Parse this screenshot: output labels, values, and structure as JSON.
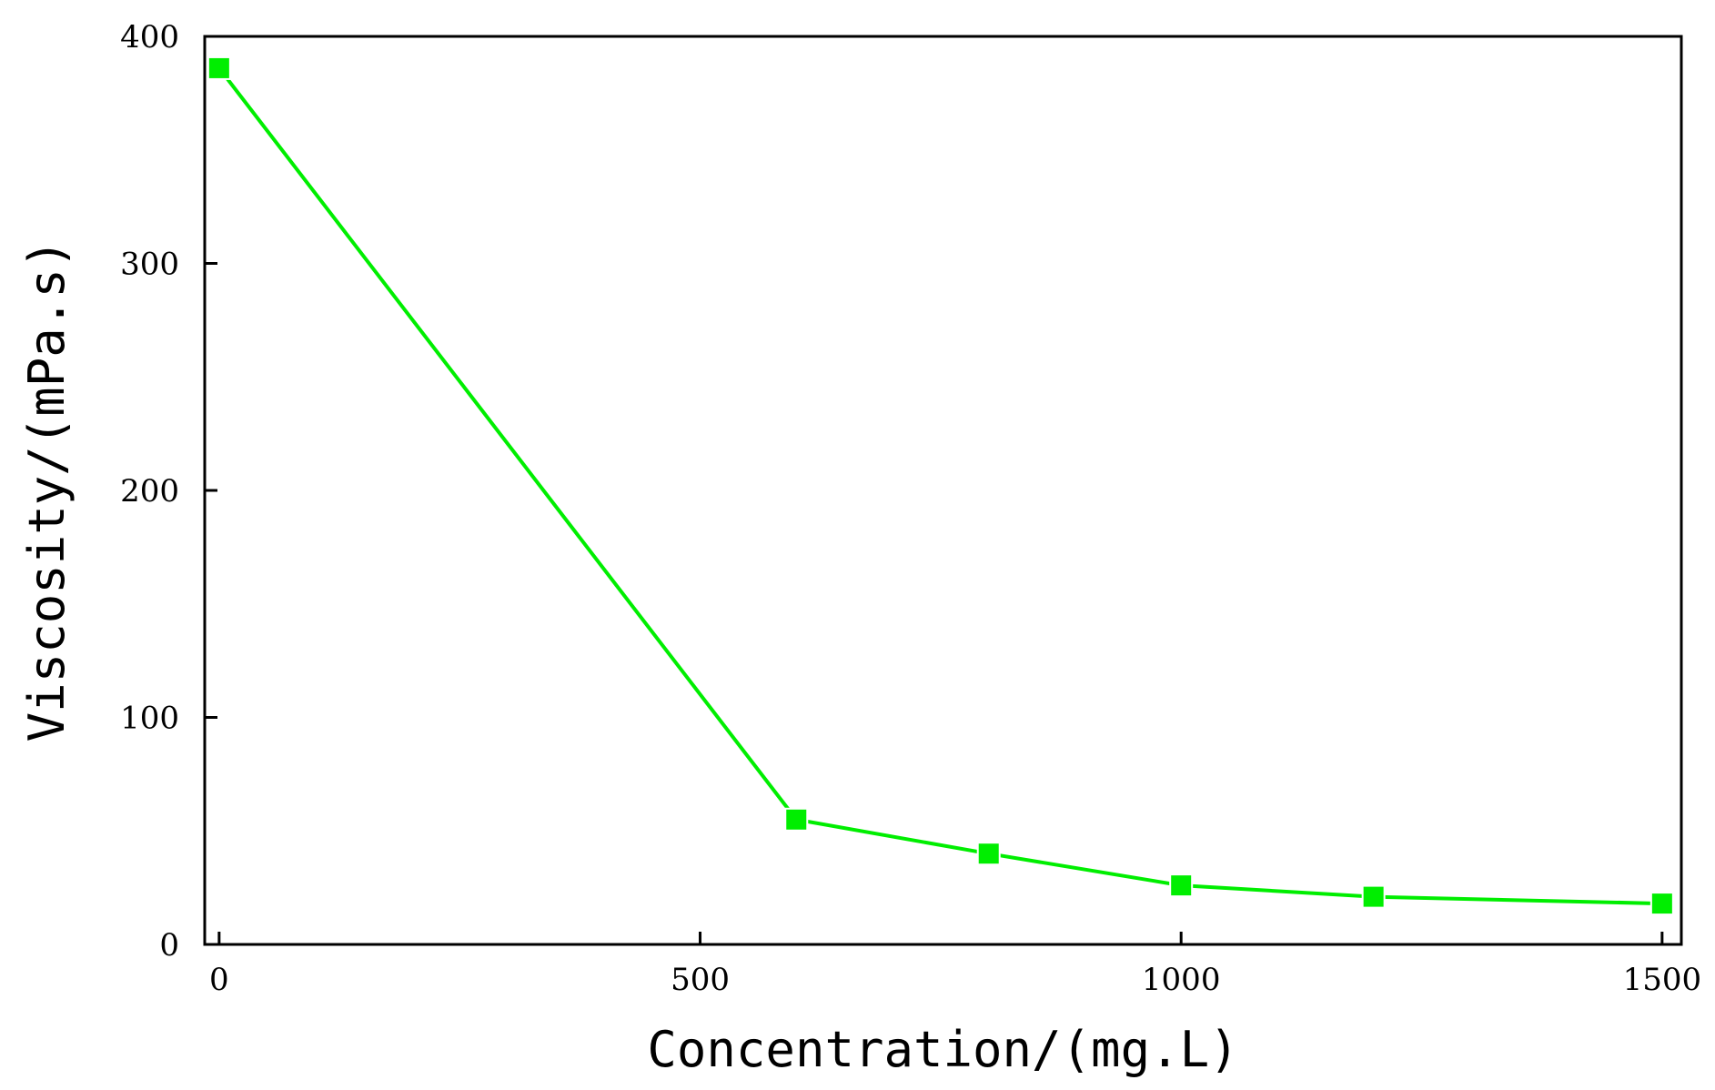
{
  "chart_data": {
    "type": "line",
    "title": "",
    "xlabel": "Concentration/(mg.L)",
    "ylabel": "Viscosity/(mPa.s)",
    "xlim": [
      -15,
      1520
    ],
    "ylim": [
      0,
      400
    ],
    "x_ticks": [
      0,
      500,
      1000,
      1500
    ],
    "y_ticks": [
      0,
      100,
      200,
      300,
      400
    ],
    "x_tick_labels": [
      "0",
      "500",
      "1000",
      "1500"
    ],
    "y_tick_labels": [
      "0",
      "100",
      "200",
      "300",
      "400"
    ],
    "grid": false,
    "legend": "none",
    "series": [
      {
        "color": "#00ee00",
        "marker": "square",
        "x": [
          0,
          600,
          800,
          1000,
          1200,
          1500
        ],
        "y": [
          386,
          55,
          40,
          26,
          21,
          18
        ]
      }
    ]
  }
}
